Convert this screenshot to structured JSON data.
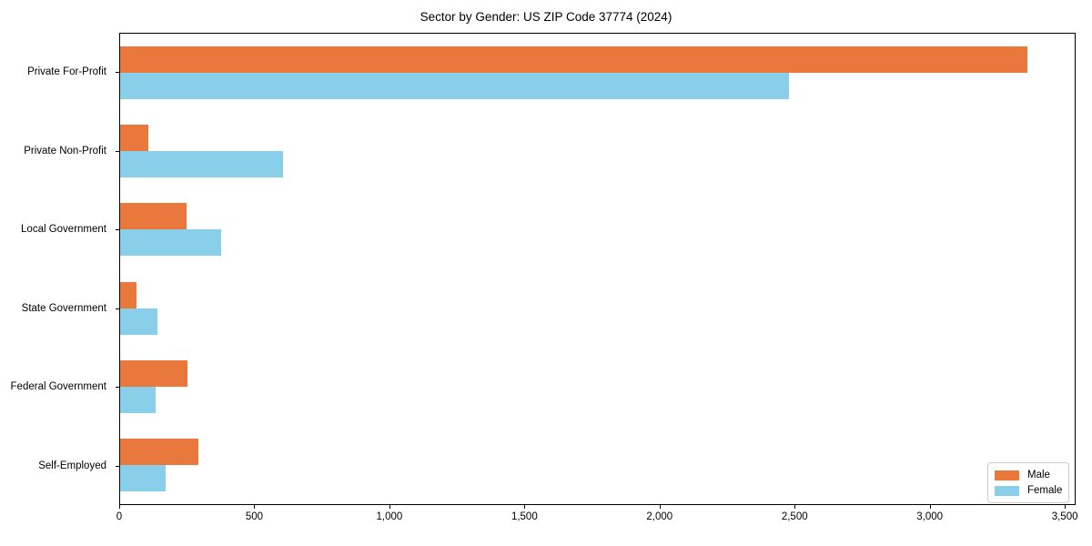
{
  "title": "Sector by Gender: US ZIP Code 37774 (2024)",
  "colors": {
    "male": "#e8783c",
    "female": "#89cfea",
    "spine": "#000000",
    "legend_border": "#cccccc",
    "background": "#ffffff"
  },
  "chart_data": {
    "type": "bar",
    "orientation": "horizontal",
    "title": "Sector by Gender: US ZIP Code 37774 (2024)",
    "xlabel": "",
    "ylabel": "",
    "categories": [
      "Private For-Profit",
      "Private Non-Profit",
      "Local Government",
      "State Government",
      "Federal Government",
      "Self-Employed"
    ],
    "series": [
      {
        "name": "Male",
        "color": "#e8783c",
        "values": [
          3365,
          105,
          245,
          60,
          250,
          290
        ]
      },
      {
        "name": "Female",
        "color": "#89cfea",
        "values": [
          2480,
          605,
          375,
          140,
          130,
          170
        ]
      }
    ],
    "xlim": [
      0,
      3540
    ],
    "xticks": [
      0,
      500,
      1000,
      1500,
      2000,
      2500,
      3000,
      3500
    ],
    "xtick_labels": [
      "0",
      "500",
      "1,000",
      "1,500",
      "2,000",
      "2,500",
      "3,000",
      "3,500"
    ],
    "grid": false,
    "legend_position": "lower right"
  },
  "legend": {
    "items": [
      {
        "label": "Male"
      },
      {
        "label": "Female"
      }
    ]
  }
}
